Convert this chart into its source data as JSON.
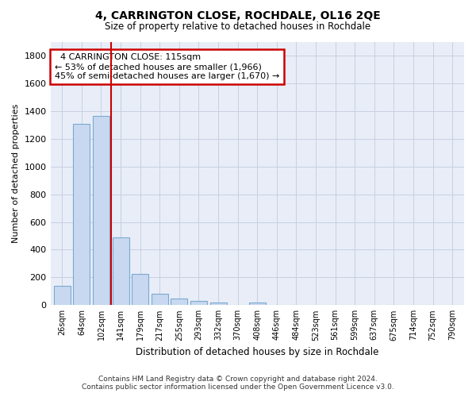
{
  "title": "4, CARRINGTON CLOSE, ROCHDALE, OL16 2QE",
  "subtitle": "Size of property relative to detached houses in Rochdale",
  "xlabel": "Distribution of detached houses by size in Rochdale",
  "ylabel": "Number of detached properties",
  "footer_line1": "Contains HM Land Registry data © Crown copyright and database right 2024.",
  "footer_line2": "Contains public sector information licensed under the Open Government Licence v3.0.",
  "bar_labels": [
    "26sqm",
    "64sqm",
    "102sqm",
    "141sqm",
    "179sqm",
    "217sqm",
    "255sqm",
    "293sqm",
    "332sqm",
    "370sqm",
    "408sqm",
    "446sqm",
    "484sqm",
    "523sqm",
    "561sqm",
    "599sqm",
    "637sqm",
    "675sqm",
    "714sqm",
    "752sqm",
    "790sqm"
  ],
  "bar_values": [
    140,
    1310,
    1365,
    490,
    225,
    80,
    48,
    28,
    20,
    0,
    18,
    0,
    0,
    0,
    0,
    0,
    0,
    0,
    0,
    0,
    0
  ],
  "bar_color": "#c8d8f0",
  "bar_edge_color": "#7aaad0",
  "vline_x": 2.5,
  "vline_color": "#cc0000",
  "ylim": [
    0,
    1900
  ],
  "yticks": [
    0,
    200,
    400,
    600,
    800,
    1000,
    1200,
    1400,
    1600,
    1800
  ],
  "annotation_title": "4 CARRINGTON CLOSE: 115sqm",
  "annotation_line1": "← 53% of detached houses are smaller (1,966)",
  "annotation_line2": "45% of semi-detached houses are larger (1,670) →",
  "annotation_box_color": "#ffffff",
  "annotation_box_edge": "#cc0000",
  "grid_color": "#c8d0e0",
  "background_color": "#ffffff",
  "plot_background": "#e8edf8"
}
